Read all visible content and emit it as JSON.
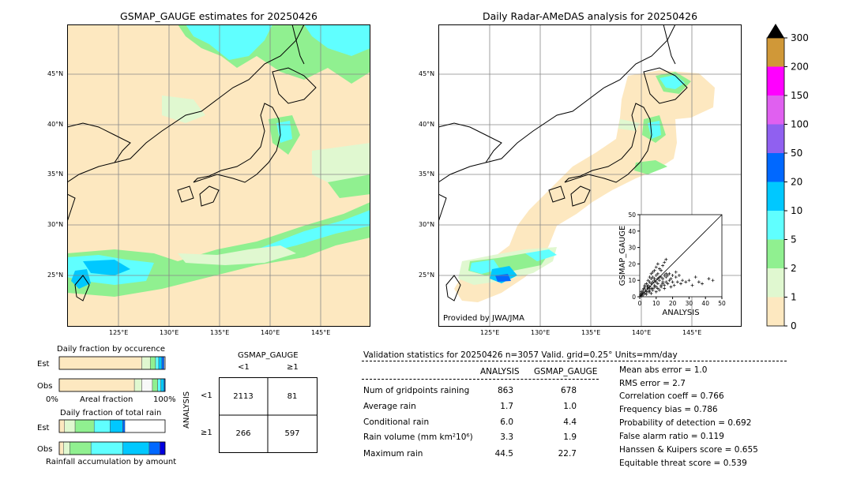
{
  "maps": {
    "left_title": "GSMAP_GAUGE estimates for 20250426",
    "right_title": "Daily Radar-AMeDAS analysis for 20250426",
    "lat_labels": [
      "45°N",
      "40°N",
      "35°N",
      "30°N",
      "25°N"
    ],
    "lon_labels": [
      "125°E",
      "130°E",
      "135°E",
      "140°E",
      "145°E"
    ],
    "credit": "Provided by JWA/JMA"
  },
  "colorbar": {
    "levels": [
      "0",
      "1",
      "2",
      "5",
      "10",
      "20",
      "50",
      "100",
      "150",
      "200",
      "300"
    ],
    "colors": [
      "#fde8c0",
      "#e0f8d0",
      "#90f090",
      "#60ffff",
      "#00c8ff",
      "#0068ff",
      "#9060f0",
      "#e060f0",
      "#ff00ff",
      "#d09838"
    ],
    "extend_color": "#000000"
  },
  "chart_data": [
    {
      "type": "scatter",
      "xlabel": "ANALYSIS",
      "ylabel": "GSMAP_GAUGE",
      "xlim": [
        0,
        50
      ],
      "ylim": [
        0,
        50
      ],
      "xticks": [
        "0",
        "10",
        "20",
        "30",
        "40",
        "50"
      ],
      "yticks": [
        "0",
        "10",
        "20",
        "30",
        "40",
        "50"
      ],
      "points": [
        [
          1,
          0.5
        ],
        [
          2,
          1
        ],
        [
          3,
          2
        ],
        [
          4,
          1.5
        ],
        [
          5,
          3
        ],
        [
          6,
          4
        ],
        [
          7,
          2
        ],
        [
          8,
          5
        ],
        [
          9,
          6
        ],
        [
          10,
          3
        ],
        [
          11,
          8
        ],
        [
          12,
          4
        ],
        [
          13,
          7
        ],
        [
          14,
          9
        ],
        [
          15,
          5
        ],
        [
          16,
          12
        ],
        [
          17,
          8
        ],
        [
          18,
          10
        ],
        [
          19,
          6
        ],
        [
          20,
          9
        ],
        [
          21,
          7
        ],
        [
          22,
          12
        ],
        [
          23,
          9
        ],
        [
          24,
          13
        ],
        [
          25,
          8
        ],
        [
          26,
          10
        ],
        [
          28,
          9
        ],
        [
          30,
          10
        ],
        [
          32,
          7
        ],
        [
          34,
          12
        ],
        [
          36,
          9
        ],
        [
          38,
          8
        ],
        [
          42,
          11
        ],
        [
          44.5,
          10
        ],
        [
          3,
          6
        ],
        [
          4,
          8
        ],
        [
          5,
          10
        ],
        [
          6,
          12
        ],
        [
          7,
          14
        ],
        [
          8,
          15
        ],
        [
          9,
          16
        ],
        [
          10,
          18
        ],
        [
          11,
          20
        ],
        [
          12,
          17
        ],
        [
          13,
          16
        ],
        [
          14,
          19
        ],
        [
          15,
          21
        ],
        [
          16,
          22.7
        ],
        [
          2,
          4
        ],
        [
          3,
          7
        ],
        [
          1,
          2
        ],
        [
          2,
          3
        ],
        [
          5,
          7
        ],
        [
          6,
          9
        ],
        [
          7,
          11
        ],
        [
          8,
          12
        ],
        [
          9,
          11
        ],
        [
          10,
          13
        ],
        [
          11,
          14
        ],
        [
          12,
          12
        ],
        [
          4,
          3
        ],
        [
          5,
          5
        ],
        [
          6,
          6
        ],
        [
          7,
          8
        ],
        [
          8,
          9
        ],
        [
          9,
          10
        ],
        [
          10,
          9
        ],
        [
          11,
          11
        ],
        [
          12,
          10
        ],
        [
          13,
          12
        ],
        [
          14,
          11
        ],
        [
          15,
          13
        ],
        [
          0.5,
          1
        ],
        [
          1,
          3
        ],
        [
          1.5,
          2
        ],
        [
          2.5,
          5
        ],
        [
          3.5,
          4
        ],
        [
          4.5,
          6
        ],
        [
          18,
          14
        ],
        [
          20,
          13
        ],
        [
          22,
          15
        ],
        [
          19,
          11
        ],
        [
          17,
          13
        ],
        [
          16,
          14
        ],
        [
          6,
          3
        ],
        [
          7,
          5
        ],
        [
          8,
          4
        ],
        [
          9,
          7
        ],
        [
          10,
          6
        ],
        [
          11,
          5
        ],
        [
          13,
          6
        ],
        [
          14,
          8
        ],
        [
          15,
          7
        ],
        [
          16,
          9
        ]
      ]
    },
    {
      "type": "bar",
      "title": "Daily fraction by occurence",
      "categories": [
        "Est",
        "Obs"
      ],
      "xlabel": "Areal fraction",
      "xlim_labels": [
        "0%",
        "100%"
      ],
      "series": [
        {
          "row": "Est",
          "segments": [
            {
              "value": 0.78,
              "color": "#fde8c0"
            },
            {
              "value": 0.08,
              "color": "#e0f8d0"
            },
            {
              "value": 0.05,
              "color": "#90f090"
            },
            {
              "value": 0.03,
              "color": "#60ffff"
            },
            {
              "value": 0.03,
              "color": "#00c8ff"
            },
            {
              "value": 0.02,
              "color": "#0068ff"
            }
          ]
        },
        {
          "row": "Obs",
          "segments": [
            {
              "value": 0.71,
              "color": "#fde8c0"
            },
            {
              "value": 0.07,
              "color": "#e0f8d0"
            },
            {
              "value": 0.1,
              "color": "#f8f8f8"
            },
            {
              "value": 0.05,
              "color": "#90f090"
            },
            {
              "value": 0.03,
              "color": "#60ffff"
            },
            {
              "value": 0.03,
              "color": "#00c8ff"
            },
            {
              "value": 0.01,
              "color": "#0068ff"
            }
          ]
        }
      ]
    },
    {
      "type": "bar",
      "title": "Daily fraction of total rain",
      "categories": [
        "Est",
        "Obs"
      ],
      "xlabel": "Rainfall accumulation by amount",
      "series": [
        {
          "row": "Est",
          "segments": [
            {
              "value": 0.05,
              "color": "#fde8c0"
            },
            {
              "value": 0.1,
              "color": "#e0f8d0"
            },
            {
              "value": 0.18,
              "color": "#90f090"
            },
            {
              "value": 0.15,
              "color": "#60ffff"
            },
            {
              "value": 0.12,
              "color": "#00c8ff"
            },
            {
              "value": 0.02,
              "color": "#0068ff"
            }
          ]
        },
        {
          "row": "Obs",
          "segments": [
            {
              "value": 0.04,
              "color": "#fde8c0"
            },
            {
              "value": 0.06,
              "color": "#e0f8d0"
            },
            {
              "value": 0.2,
              "color": "#90f090"
            },
            {
              "value": 0.3,
              "color": "#60ffff"
            },
            {
              "value": 0.25,
              "color": "#00c8ff"
            },
            {
              "value": 0.1,
              "color": "#0068ff"
            },
            {
              "value": 0.05,
              "color": "#0000e0"
            }
          ]
        }
      ]
    },
    {
      "type": "table",
      "title": "GSMAP_GAUGE",
      "col_labels": [
        "<1",
        "≥1"
      ],
      "row_axis_label": "ANALYSIS",
      "row_labels": [
        "<1",
        "≥1"
      ],
      "cells": [
        [
          "2113",
          "81"
        ],
        [
          "266",
          "597"
        ]
      ]
    }
  ],
  "validation": {
    "header": "Validation statistics for 20250426  n=3057 Valid. grid=0.25° Units=mm/day",
    "col_analysis": "ANALYSIS",
    "col_gsmap": "GSMAP_GAUGE",
    "rows": [
      {
        "label": "Num of gridpoints raining",
        "analysis": "863",
        "gsmap": "678"
      },
      {
        "label": "Average rain",
        "analysis": "1.7",
        "gsmap": "1.0"
      },
      {
        "label": "Conditional rain",
        "analysis": "6.0",
        "gsmap": "4.4"
      },
      {
        "label": "Rain volume (mm km²10⁶)",
        "analysis": "3.3",
        "gsmap": "1.9"
      },
      {
        "label": "Maximum rain",
        "analysis": "44.5",
        "gsmap": "22.7"
      }
    ],
    "scores": [
      "Mean abs error =    1.0",
      "RMS error =    2.7",
      "Correlation coeff =  0.766",
      "Frequency bias =  0.786",
      "Probability of detection =  0.692",
      "False alarm ratio =  0.119",
      "Hanssen & Kuipers score =  0.655",
      "Equitable threat score =  0.539"
    ]
  }
}
